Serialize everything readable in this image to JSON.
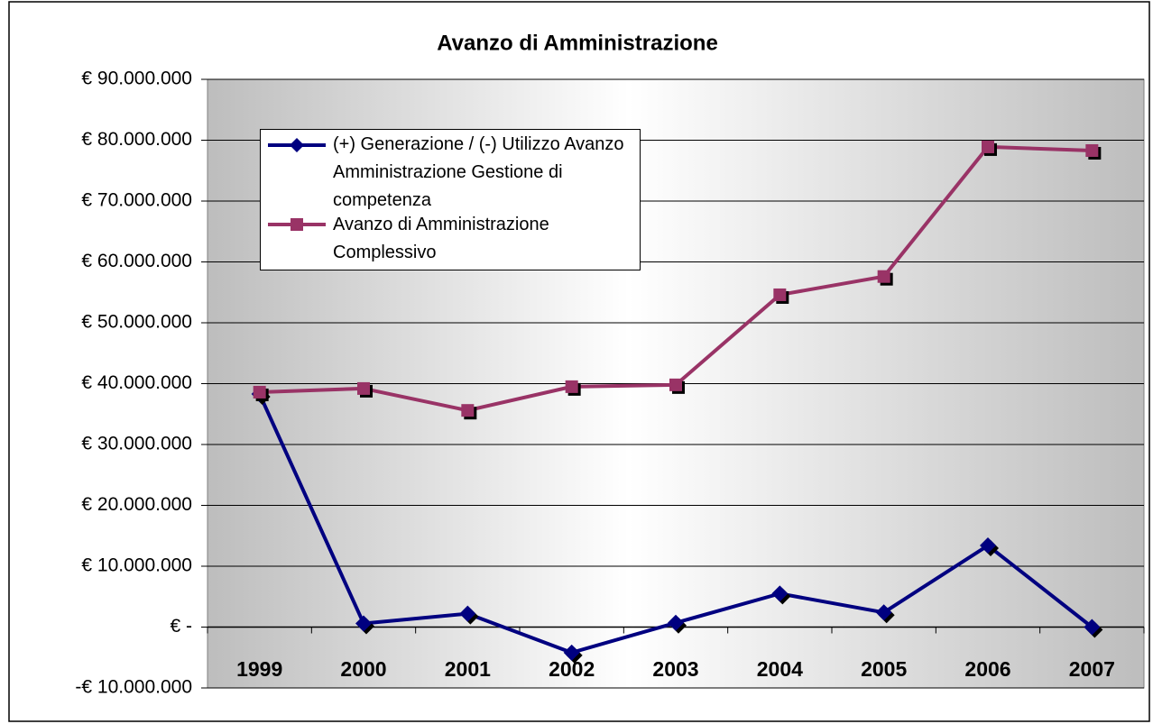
{
  "chart_data": {
    "type": "line",
    "title": "Avanzo di Amministrazione",
    "categories": [
      "1999",
      "2000",
      "2001",
      "2002",
      "2003",
      "2004",
      "2005",
      "2006",
      "2007"
    ],
    "series": [
      {
        "name": "(+) Generazione / (-) Utilizzo Avanzo Amministrazione Gestione di competenza",
        "color": "#000080",
        "marker": "diamond",
        "values": [
          38300000,
          600000,
          2200000,
          -4200000,
          700000,
          5500000,
          2400000,
          13400000,
          0
        ]
      },
      {
        "name": "Avanzo di Amministrazione Complessivo",
        "color": "#993366",
        "marker": "square",
        "values": [
          38600000,
          39200000,
          35600000,
          39500000,
          39800000,
          54600000,
          57600000,
          78900000,
          78300000
        ]
      }
    ],
    "ylim": [
      -10000000,
      90000000
    ],
    "yticks": [
      {
        "value": -10000000,
        "label": "-€ 10.000.000"
      },
      {
        "value": 0,
        "label": "€ -"
      },
      {
        "value": 10000000,
        "label": "€ 10.000.000"
      },
      {
        "value": 20000000,
        "label": "€ 20.000.000"
      },
      {
        "value": 30000000,
        "label": "€ 30.000.000"
      },
      {
        "value": 40000000,
        "label": "€ 40.000.000"
      },
      {
        "value": 50000000,
        "label": "€ 50.000.000"
      },
      {
        "value": 60000000,
        "label": "€ 60.000.000"
      },
      {
        "value": 70000000,
        "label": "€ 70.000.000"
      },
      {
        "value": 80000000,
        "label": "€ 80.000.000"
      },
      {
        "value": 90000000,
        "label": "€ 90.000.000"
      }
    ],
    "grid": true,
    "legend": "top-left"
  }
}
